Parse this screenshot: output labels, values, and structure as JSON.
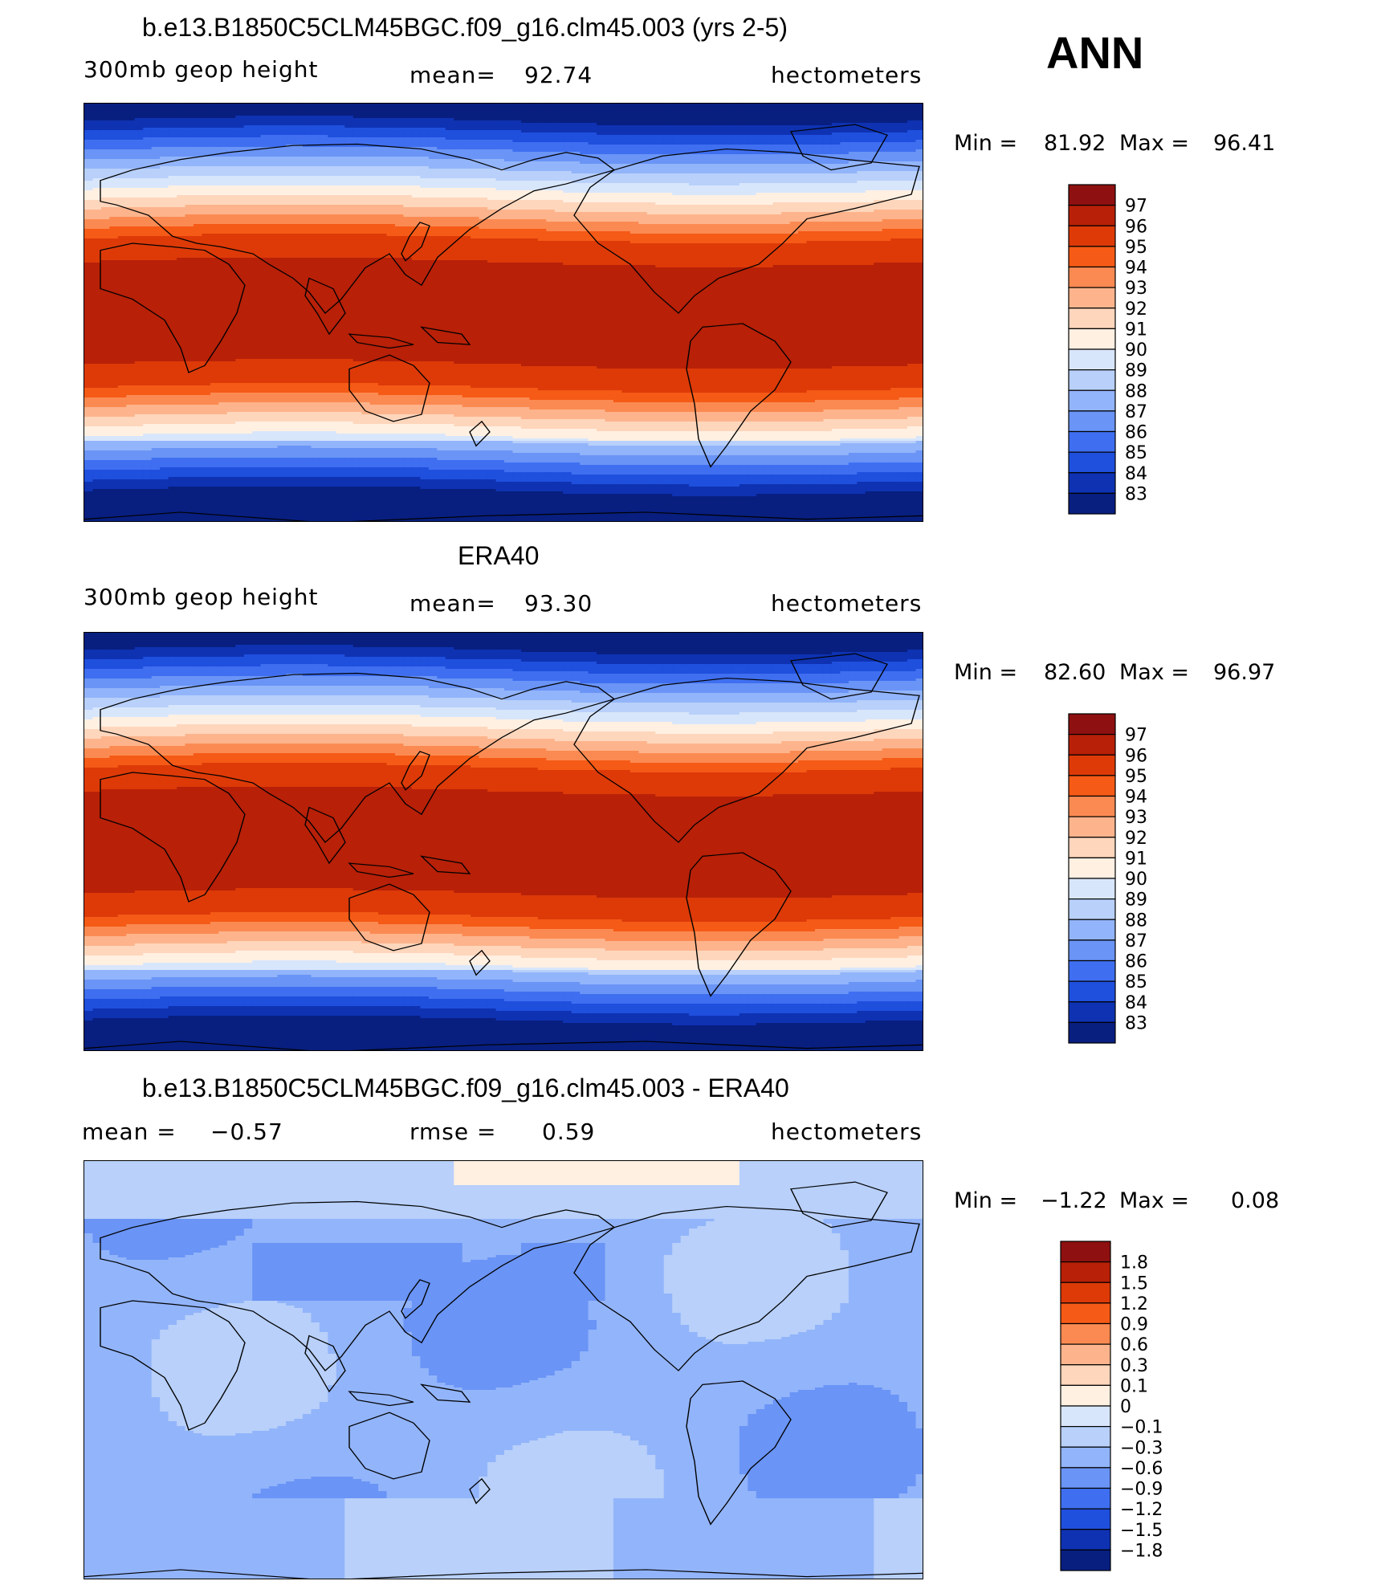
{
  "page": {
    "season": "ANN",
    "units": "hectometers"
  },
  "chart_data": [
    {
      "type": "heatmap",
      "title": "b.e13.B1850C5CLM45BGC.f09_g16.clm45.003 (yrs 2-5)",
      "variable": "300mb geop height",
      "mean_label": "mean=",
      "mean_value": "92.74",
      "units": "hectometers",
      "min_label": "Min =",
      "min": "81.92",
      "max_label": "Max =",
      "max": "96.41",
      "colorbar_levels": [
        "97",
        "96",
        "95",
        "94",
        "93",
        "92",
        "91",
        "90",
        "89",
        "88",
        "87",
        "86",
        "85",
        "84",
        "83"
      ],
      "colorbar_colors": [
        "#8e1010",
        "#b82008",
        "#dd3a08",
        "#f55a16",
        "#fb8a52",
        "#fdb48c",
        "#fed6bc",
        "#fff0e2",
        "#d8e6fb",
        "#b8d0fa",
        "#92b4fa",
        "#6a94f6",
        "#3f6ff0",
        "#1f4fdd",
        "#0e32b2",
        "#081f80"
      ]
    },
    {
      "type": "heatmap",
      "title": "ERA40",
      "variable": "300mb geop height",
      "mean_label": "mean=",
      "mean_value": "93.30",
      "units": "hectometers",
      "min_label": "Min =",
      "min": "82.60",
      "max_label": "Max =",
      "max": "96.97",
      "colorbar_levels": [
        "97",
        "96",
        "95",
        "94",
        "93",
        "92",
        "91",
        "90",
        "89",
        "88",
        "87",
        "86",
        "85",
        "84",
        "83"
      ],
      "colorbar_colors": [
        "#8e1010",
        "#b82008",
        "#dd3a08",
        "#f55a16",
        "#fb8a52",
        "#fdb48c",
        "#fed6bc",
        "#fff0e2",
        "#d8e6fb",
        "#b8d0fa",
        "#92b4fa",
        "#6a94f6",
        "#3f6ff0",
        "#1f4fdd",
        "#0e32b2",
        "#081f80"
      ]
    },
    {
      "type": "heatmap",
      "title": "b.e13.B1850C5CLM45BGC.f09_g16.clm45.003 - ERA40",
      "mean_label": "mean =",
      "mean_value": "−0.57",
      "rmse_label": "rmse =",
      "rmse_value": "0.59",
      "units": "hectometers",
      "min_label": "Min =",
      "min": "−1.22",
      "max_label": "Max =",
      "max": "0.08",
      "colorbar_levels": [
        "1.8",
        "1.5",
        "1.2",
        "0.9",
        "0.6",
        "0.3",
        "0.1",
        "0",
        "−0.1",
        "−0.3",
        "−0.6",
        "−0.9",
        "−1.2",
        "−1.5",
        "−1.8"
      ],
      "colorbar_colors": [
        "#8e1010",
        "#b82008",
        "#dd3a08",
        "#f55a16",
        "#fb8a52",
        "#fdb48c",
        "#fed6bc",
        "#fff0e2",
        "#d8e6fb",
        "#b8d0fa",
        "#92b4fa",
        "#6a94f6",
        "#3f6ff0",
        "#1f4fdd",
        "#0e32b2",
        "#081f80"
      ]
    }
  ]
}
